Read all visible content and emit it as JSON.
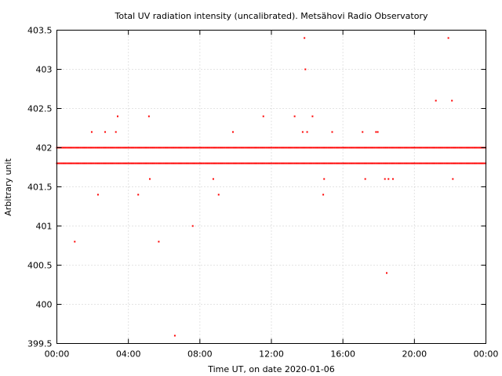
{
  "chart_data": {
    "type": "scatter",
    "title": "Total UV radiation intensity (uncalibrated). Metsähovi Radio Observatory",
    "xlabel": "Time UT, on date 2020-01-06",
    "ylabel": "Arbitrary unit",
    "xlim": [
      0,
      24
    ],
    "ylim": [
      399.5,
      403.5
    ],
    "grid": true,
    "legend": "none",
    "point_color": "#ff0000",
    "x_ticks": [
      {
        "value": 0,
        "label": "00:00"
      },
      {
        "value": 4,
        "label": "04:00"
      },
      {
        "value": 8,
        "label": "08:00"
      },
      {
        "value": 12,
        "label": "12:00"
      },
      {
        "value": 16,
        "label": "16:00"
      },
      {
        "value": 20,
        "label": "20:00"
      },
      {
        "value": 24,
        "label": "00:00"
      }
    ],
    "y_ticks": [
      {
        "value": 399.5,
        "label": "399.5"
      },
      {
        "value": 400,
        "label": "400"
      },
      {
        "value": 400.5,
        "label": "400.5"
      },
      {
        "value": 401,
        "label": "401"
      },
      {
        "value": 401.5,
        "label": "401.5"
      },
      {
        "value": 402,
        "label": "402"
      },
      {
        "value": 402.5,
        "label": "402.5"
      },
      {
        "value": 403,
        "label": "403"
      },
      {
        "value": 403.5,
        "label": "403.5"
      }
    ],
    "dense_bands": [
      {
        "y": 402.0,
        "x_start": 0,
        "x_end": 24,
        "step": 0.083
      },
      {
        "y": 401.8,
        "x_start": 0,
        "x_end": 24,
        "step": 0.083
      }
    ],
    "points": [
      {
        "x": 1.0,
        "y": 400.8
      },
      {
        "x": 1.95,
        "y": 402.2
      },
      {
        "x": 2.3,
        "y": 401.4
      },
      {
        "x": 2.7,
        "y": 402.2
      },
      {
        "x": 3.3,
        "y": 402.2
      },
      {
        "x": 3.4,
        "y": 402.4
      },
      {
        "x": 4.55,
        "y": 401.4
      },
      {
        "x": 5.15,
        "y": 402.4
      },
      {
        "x": 5.2,
        "y": 401.6
      },
      {
        "x": 5.7,
        "y": 400.8
      },
      {
        "x": 6.6,
        "y": 399.6
      },
      {
        "x": 7.6,
        "y": 401.0
      },
      {
        "x": 8.75,
        "y": 401.6
      },
      {
        "x": 9.05,
        "y": 401.4
      },
      {
        "x": 9.85,
        "y": 402.2
      },
      {
        "x": 11.55,
        "y": 402.4
      },
      {
        "x": 13.3,
        "y": 402.4
      },
      {
        "x": 13.75,
        "y": 402.2
      },
      {
        "x": 13.85,
        "y": 403.4
      },
      {
        "x": 13.9,
        "y": 403.0
      },
      {
        "x": 14.0,
        "y": 402.2
      },
      {
        "x": 14.3,
        "y": 402.4
      },
      {
        "x": 14.9,
        "y": 401.4
      },
      {
        "x": 14.95,
        "y": 401.6
      },
      {
        "x": 15.4,
        "y": 402.2
      },
      {
        "x": 17.1,
        "y": 402.2
      },
      {
        "x": 17.25,
        "y": 401.6
      },
      {
        "x": 17.85,
        "y": 402.2
      },
      {
        "x": 17.95,
        "y": 402.2
      },
      {
        "x": 18.35,
        "y": 401.6
      },
      {
        "x": 18.45,
        "y": 400.4
      },
      {
        "x": 18.55,
        "y": 401.6
      },
      {
        "x": 18.8,
        "y": 401.6
      },
      {
        "x": 21.2,
        "y": 402.6
      },
      {
        "x": 21.9,
        "y": 403.4
      },
      {
        "x": 22.1,
        "y": 402.6
      },
      {
        "x": 22.15,
        "y": 401.6
      }
    ]
  }
}
